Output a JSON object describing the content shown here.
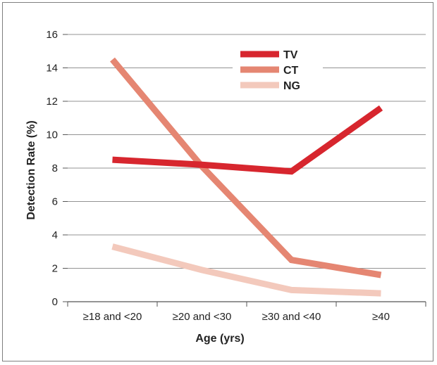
{
  "chart_data": {
    "type": "line",
    "categories": [
      "≥18 and <20",
      "≥20 and <30",
      "≥30 and <40",
      "≥40"
    ],
    "series": [
      {
        "name": "TV",
        "values": [
          8.5,
          8.2,
          7.8,
          11.6
        ],
        "color": "#d7262e"
      },
      {
        "name": "CT",
        "values": [
          14.5,
          8.1,
          2.5,
          1.6
        ],
        "color": "#e58672"
      },
      {
        "name": "NG",
        "values": [
          3.3,
          1.9,
          0.7,
          0.5
        ],
        "color": "#f3c9bc"
      }
    ],
    "xlabel": "Age (yrs)",
    "ylabel": "Detection Rate (%)",
    "ylim": [
      0,
      16
    ],
    "yticks": [
      0,
      2,
      4,
      6,
      8,
      10,
      12,
      14,
      16
    ],
    "grid": true,
    "legend_position": "top-right"
  }
}
